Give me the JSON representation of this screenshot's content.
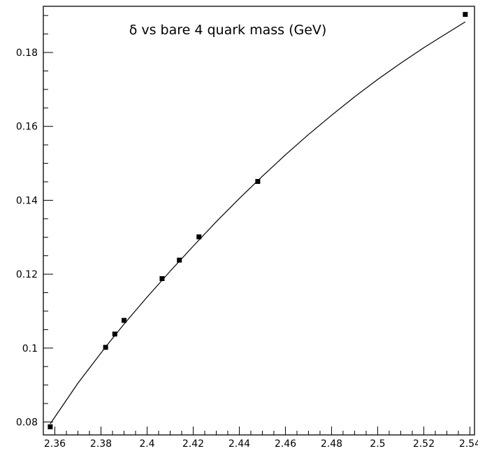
{
  "chart_data": {
    "type": "scatter",
    "title": "δ vs bare 4 quark mass (GeV)",
    "xlabel": "",
    "ylabel": "",
    "xlim": [
      2.355,
      2.542
    ],
    "ylim": [
      0.0765,
      0.1925
    ],
    "grid": false,
    "x_ticks": [
      2.36,
      2.38,
      2.4,
      2.42,
      2.44,
      2.46,
      2.48,
      2.5,
      2.52,
      2.54
    ],
    "x_tick_labels": [
      "2.36",
      "2.38",
      "2.4",
      "2.42",
      "2.44",
      "2.46",
      "2.48",
      "2.5",
      "2.52",
      "2.54"
    ],
    "y_ticks": [
      0.08,
      0.1,
      0.12,
      0.14,
      0.16,
      0.18
    ],
    "y_tick_labels": [
      "0.08",
      "0.1",
      "0.12",
      "0.14",
      "0.16",
      "0.18"
    ],
    "series": [
      {
        "kind": "points",
        "x": [
          2.358,
          2.382,
          2.386,
          2.39,
          2.4065,
          2.414,
          2.4225,
          2.448,
          2.538
        ],
        "y": [
          0.0787,
          0.1002,
          0.1038,
          0.1075,
          0.1188,
          0.1238,
          0.1301,
          0.1451,
          0.1903
        ]
      },
      {
        "kind": "curve",
        "x": [
          2.358,
          2.37,
          2.382,
          2.39,
          2.4,
          2.41,
          2.42,
          2.43,
          2.44,
          2.45,
          2.46,
          2.47,
          2.48,
          2.49,
          2.5,
          2.51,
          2.52,
          2.53,
          2.538
        ],
        "y": [
          0.0795,
          0.0905,
          0.1003,
          0.1065,
          0.1138,
          0.1208,
          0.1276,
          0.1342,
          0.1405,
          0.1465,
          0.1523,
          0.1578,
          0.163,
          0.168,
          0.1727,
          0.1771,
          0.1813,
          0.1852,
          0.1883
        ]
      }
    ]
  }
}
